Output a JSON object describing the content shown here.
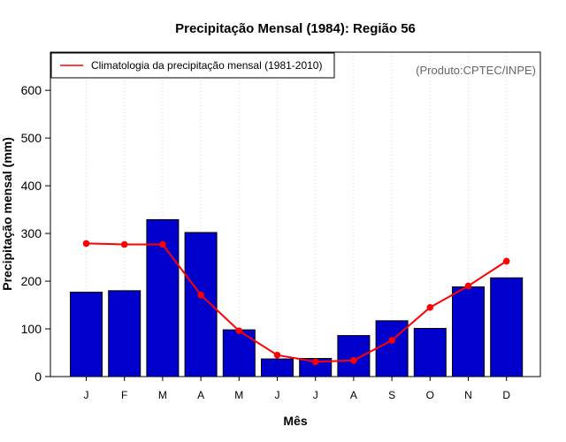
{
  "chart_data": {
    "type": "bar",
    "title": "Precipitação Mensal (1984): Região 56",
    "xlabel": "Mês",
    "ylabel": "Precipitação mensal (mm)",
    "ylim": [
      0,
      680
    ],
    "yticks": [
      0,
      100,
      200,
      300,
      400,
      500,
      600
    ],
    "categories": [
      "J",
      "F",
      "M",
      "A",
      "M",
      "J",
      "J",
      "A",
      "S",
      "O",
      "N",
      "D"
    ],
    "series": [
      {
        "name": "Precipitação mensal (1984)",
        "type": "bar",
        "color": "#0000cc",
        "values": [
          177,
          180,
          329,
          302,
          98,
          37,
          38,
          86,
          117,
          101,
          188,
          207
        ]
      },
      {
        "name": "Climatologia da precipitação mensal (1981-2010)",
        "type": "line",
        "color": "#ff0000",
        "values": [
          279,
          277,
          277,
          171,
          96,
          45,
          31,
          34,
          76,
          145,
          190,
          242
        ]
      }
    ],
    "legend": {
      "position": "top-left",
      "entries": [
        "Climatologia da precipitação mensal (1981-2010)"
      ]
    },
    "source_note": "(Produto:CPTEC/INPE)",
    "grid": "vertical-dotted"
  }
}
